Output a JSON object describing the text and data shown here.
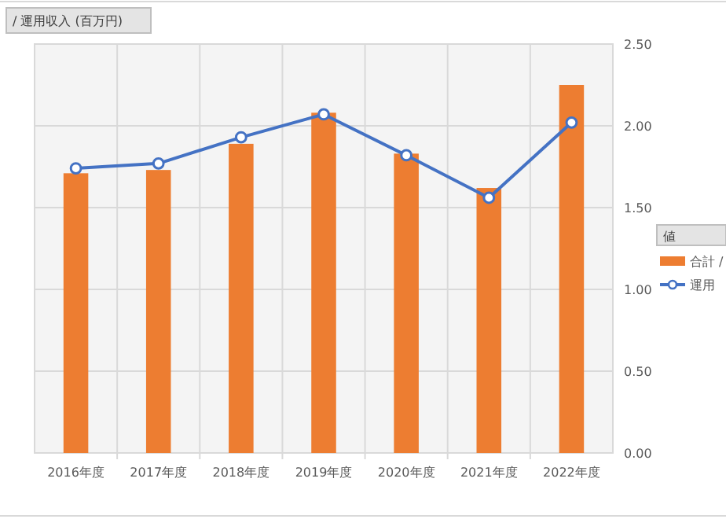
{
  "chart_data": {
    "type": "bar",
    "title": "/ 運用収入 (百万円)",
    "legend_title": "値",
    "categories": [
      "2016年度",
      "2017年度",
      "2018年度",
      "2019年度",
      "2020年度",
      "2021年度",
      "2022年度"
    ],
    "series": [
      {
        "name": "合計 /",
        "color": "#ed7d31",
        "values": [
          1.71,
          1.73,
          1.89,
          2.08,
          1.83,
          1.62,
          2.25
        ]
      },
      {
        "name": "運用",
        "type": "line",
        "color": "#4472c4",
        "values": [
          1.74,
          1.77,
          1.93,
          2.07,
          1.82,
          1.56,
          2.02
        ]
      }
    ],
    "ylim": [
      0,
      2.5
    ],
    "yticks": [
      {
        "value": 0,
        "label": "0.00"
      },
      {
        "value": 0.5,
        "label": "0.50"
      },
      {
        "value": 1,
        "label": "1.00"
      },
      {
        "value": 1.5,
        "label": "1.50"
      },
      {
        "value": 2,
        "label": "2.00"
      },
      {
        "value": 2.5,
        "label": "2.50"
      }
    ],
    "grid": true,
    "legend": "right",
    "marker": "circle"
  }
}
